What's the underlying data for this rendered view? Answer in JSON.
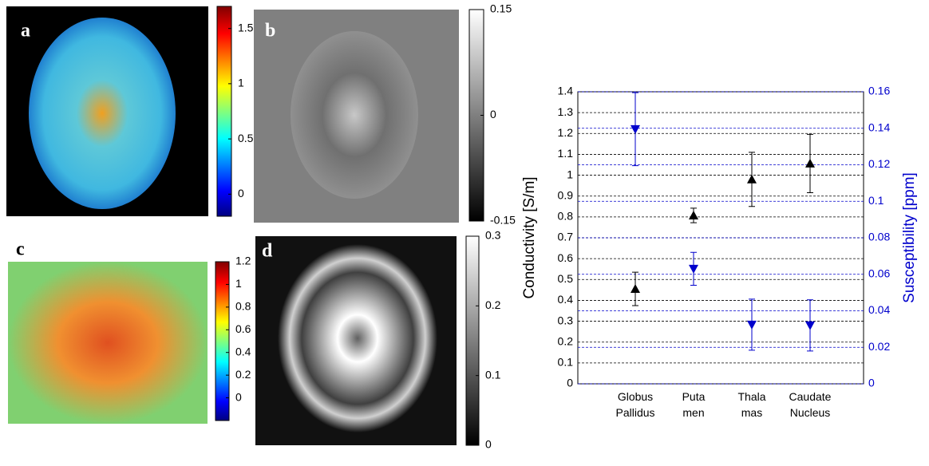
{
  "panels": [
    {
      "label": "a",
      "colormap": "jet",
      "clim": [
        -0.2,
        1.7
      ],
      "cticks": [
        0,
        0.5,
        1,
        1.5
      ]
    },
    {
      "label": "b",
      "colormap": "gray",
      "clim": [
        -0.15,
        0.15
      ],
      "cticks": [
        -0.15,
        0,
        0.15
      ]
    },
    {
      "label": "c",
      "colormap": "jet",
      "clim": [
        -0.2,
        1.2
      ],
      "cticks": [
        0,
        0.2,
        0.4,
        0.6,
        0.8,
        1,
        1.2
      ]
    },
    {
      "label": "d",
      "colormap": "gray",
      "clim": [
        0,
        0.3
      ],
      "cticks": [
        0,
        0.1,
        0.2,
        0.3
      ]
    }
  ],
  "chart_data": {
    "type": "errorbar",
    "categories": [
      "Globus Pallidus",
      "Puta men",
      "Thala mas",
      "Caudate Nucleus"
    ],
    "ylabel": "Conductivity [S/m]",
    "y2label": "Susceptibility [ppm]",
    "ylim": [
      0,
      1.4
    ],
    "yticks": [
      0,
      0.1,
      0.2,
      0.3,
      0.4,
      0.5,
      0.6,
      0.7,
      0.8,
      0.9,
      1,
      1.1,
      1.2,
      1.3,
      1.4
    ],
    "y2lim": [
      0,
      0.16
    ],
    "y2ticks": [
      0,
      0.02,
      0.04,
      0.06,
      0.08,
      0.1,
      0.12,
      0.14,
      0.16
    ],
    "grid": true,
    "series": [
      {
        "name": "Conductivity",
        "color": "#000000",
        "marker": "triangle-up",
        "axis": "y",
        "values": [
          0.455,
          0.807,
          0.98,
          1.056
        ],
        "errors": [
          0.08,
          0.035,
          0.13,
          0.14
        ]
      },
      {
        "name": "Susceptibility",
        "color": "#0000cc",
        "marker": "triangle-down",
        "axis": "y2",
        "values": [
          0.1395,
          0.063,
          0.0324,
          0.032
        ],
        "errors": [
          0.02,
          0.009,
          0.014,
          0.014
        ]
      }
    ]
  }
}
